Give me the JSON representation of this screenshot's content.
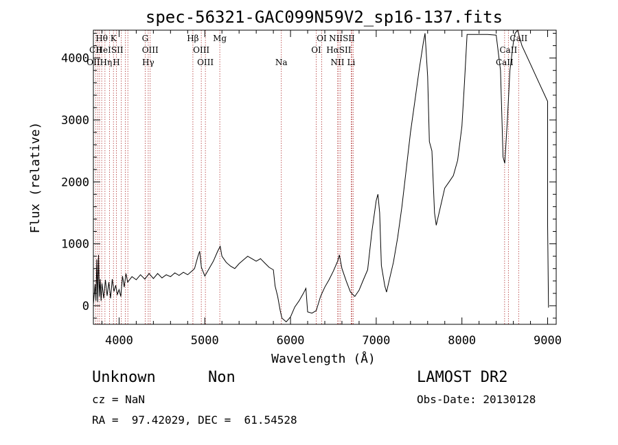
{
  "chart_data": {
    "type": "line",
    "title": "spec-56321-GAC099N59V2_sp16-137.fits",
    "xlabel": "Wavelength (Å)",
    "ylabel": "Flux (relative)",
    "xlim": [
      3700,
      9100
    ],
    "ylim": [
      -300,
      4450
    ],
    "xticks": [
      4000,
      5000,
      6000,
      7000,
      8000,
      9000
    ],
    "yticks": [
      0,
      1000,
      2000,
      3000,
      4000
    ],
    "grid": false,
    "series": [
      {
        "points": [
          [
            3700,
            20
          ],
          [
            3720,
            350
          ],
          [
            3730,
            80
          ],
          [
            3740,
            750
          ],
          [
            3750,
            60
          ],
          [
            3760,
            820
          ],
          [
            3770,
            150
          ],
          [
            3780,
            430
          ],
          [
            3790,
            80
          ],
          [
            3800,
            360
          ],
          [
            3820,
            120
          ],
          [
            3840,
            420
          ],
          [
            3860,
            160
          ],
          [
            3880,
            380
          ],
          [
            3900,
            120
          ],
          [
            3920,
            430
          ],
          [
            3940,
            230
          ],
          [
            3960,
            330
          ],
          [
            3980,
            180
          ],
          [
            4000,
            260
          ],
          [
            4020,
            150
          ],
          [
            4040,
            480
          ],
          [
            4060,
            300
          ],
          [
            4080,
            520
          ],
          [
            4100,
            380
          ],
          [
            4150,
            470
          ],
          [
            4200,
            420
          ],
          [
            4250,
            500
          ],
          [
            4300,
            430
          ],
          [
            4350,
            520
          ],
          [
            4400,
            440
          ],
          [
            4450,
            520
          ],
          [
            4500,
            450
          ],
          [
            4550,
            500
          ],
          [
            4600,
            470
          ],
          [
            4650,
            530
          ],
          [
            4700,
            490
          ],
          [
            4750,
            540
          ],
          [
            4800,
            500
          ],
          [
            4850,
            560
          ],
          [
            4880,
            600
          ],
          [
            4920,
            800
          ],
          [
            4940,
            880
          ],
          [
            4960,
            620
          ],
          [
            5000,
            480
          ],
          [
            5050,
            600
          ],
          [
            5100,
            720
          ],
          [
            5150,
            880
          ],
          [
            5180,
            960
          ],
          [
            5200,
            800
          ],
          [
            5250,
            700
          ],
          [
            5300,
            640
          ],
          [
            5350,
            600
          ],
          [
            5400,
            680
          ],
          [
            5450,
            740
          ],
          [
            5500,
            800
          ],
          [
            5550,
            760
          ],
          [
            5600,
            720
          ],
          [
            5650,
            760
          ],
          [
            5700,
            690
          ],
          [
            5750,
            620
          ],
          [
            5800,
            580
          ],
          [
            5820,
            320
          ],
          [
            5850,
            150
          ],
          [
            5880,
            -80
          ],
          [
            5900,
            -200
          ],
          [
            5950,
            -260
          ],
          [
            6000,
            -180
          ],
          [
            6050,
            -20
          ],
          [
            6100,
            80
          ],
          [
            6150,
            200
          ],
          [
            6180,
            280
          ],
          [
            6200,
            -100
          ],
          [
            6250,
            -120
          ],
          [
            6300,
            -80
          ],
          [
            6350,
            150
          ],
          [
            6400,
            300
          ],
          [
            6450,
            420
          ],
          [
            6500,
            560
          ],
          [
            6550,
            720
          ],
          [
            6570,
            820
          ],
          [
            6600,
            600
          ],
          [
            6650,
            400
          ],
          [
            6700,
            220
          ],
          [
            6750,
            150
          ],
          [
            6800,
            250
          ],
          [
            6850,
            420
          ],
          [
            6900,
            580
          ],
          [
            6950,
            1200
          ],
          [
            7000,
            1700
          ],
          [
            7020,
            1800
          ],
          [
            7040,
            1500
          ],
          [
            7060,
            650
          ],
          [
            7100,
            320
          ],
          [
            7120,
            220
          ],
          [
            7150,
            400
          ],
          [
            7200,
            700
          ],
          [
            7250,
            1100
          ],
          [
            7300,
            1600
          ],
          [
            7350,
            2200
          ],
          [
            7400,
            2800
          ],
          [
            7450,
            3300
          ],
          [
            7500,
            3800
          ],
          [
            7550,
            4250
          ],
          [
            7570,
            4400
          ],
          [
            7600,
            3700
          ],
          [
            7620,
            2650
          ],
          [
            7650,
            2500
          ],
          [
            7680,
            1500
          ],
          [
            7700,
            1300
          ],
          [
            7750,
            1600
          ],
          [
            7800,
            1900
          ],
          [
            7850,
            2000
          ],
          [
            7900,
            2100
          ],
          [
            7950,
            2350
          ],
          [
            8000,
            2900
          ],
          [
            8030,
            3600
          ],
          [
            8060,
            4380
          ],
          [
            8100,
            4380
          ],
          [
            8200,
            4380
          ],
          [
            8300,
            4380
          ],
          [
            8400,
            4370
          ],
          [
            8450,
            3800
          ],
          [
            8480,
            2400
          ],
          [
            8500,
            2300
          ],
          [
            8530,
            3000
          ],
          [
            8560,
            3800
          ],
          [
            8600,
            4250
          ],
          [
            8620,
            4400
          ],
          [
            8650,
            4500
          ],
          [
            8700,
            4200
          ],
          [
            8800,
            3900
          ],
          [
            8900,
            3600
          ],
          [
            9000,
            3300
          ],
          [
            9000,
            1300
          ],
          [
            9010,
            -30
          ]
        ]
      }
    ],
    "annotations": [
      {
        "label": "Hθ",
        "x": 3797,
        "row": 0
      },
      {
        "label": "K",
        "x": 3934,
        "row": 0
      },
      {
        "label": "G",
        "x": 4304,
        "row": 0
      },
      {
        "label": "Hβ",
        "x": 4861,
        "row": 0
      },
      {
        "label": "Mg",
        "x": 5175,
        "row": 0
      },
      {
        "label": "OI",
        "x": 6364,
        "row": 0
      },
      {
        "label": "NIISII",
        "x": 6600,
        "row": 0
      },
      {
        "label": "CaII",
        "x": 8662,
        "row": 0
      },
      {
        "label": "CII",
        "x": 3727,
        "row": 1
      },
      {
        "label": "HeISII",
        "x": 3889,
        "row": 1
      },
      {
        "label": "OIII",
        "x": 4363,
        "row": 1
      },
      {
        "label": "OIII",
        "x": 4959,
        "row": 1
      },
      {
        "label": "OI",
        "x": 6300,
        "row": 1
      },
      {
        "label": "HαSII",
        "x": 6563,
        "row": 1
      },
      {
        "label": "CaII",
        "x": 8542,
        "row": 1
      },
      {
        "label": "OIIHη",
        "x": 3770,
        "row": 2
      },
      {
        "label": "H",
        "x": 3968,
        "row": 2
      },
      {
        "label": "Hγ",
        "x": 4340,
        "row": 2
      },
      {
        "label": "OIII",
        "x": 5007,
        "row": 2
      },
      {
        "label": "Na",
        "x": 5893,
        "row": 2
      },
      {
        "label": "NII",
        "x": 6548,
        "row": 2
      },
      {
        "label": "Li",
        "x": 6708,
        "row": 2
      },
      {
        "label": "CaII",
        "x": 8498,
        "row": 2
      }
    ],
    "marker_lines": [
      3727,
      3750,
      3771,
      3797,
      3835,
      3889,
      3934,
      3968,
      4026,
      4072,
      4102,
      4304,
      4340,
      4363,
      4861,
      4959,
      5007,
      5175,
      5893,
      6300,
      6364,
      6548,
      6563,
      6583,
      6708,
      6716,
      6731,
      8498,
      8542,
      8662
    ]
  },
  "info": {
    "class": "Unknown",
    "subclass": "Non",
    "survey": "LAMOST DR2",
    "cz": "cz = NaN",
    "obs_date": "Obs-Date: 20130128",
    "radec": "RA =  97.42029, DEC =  61.54528"
  }
}
